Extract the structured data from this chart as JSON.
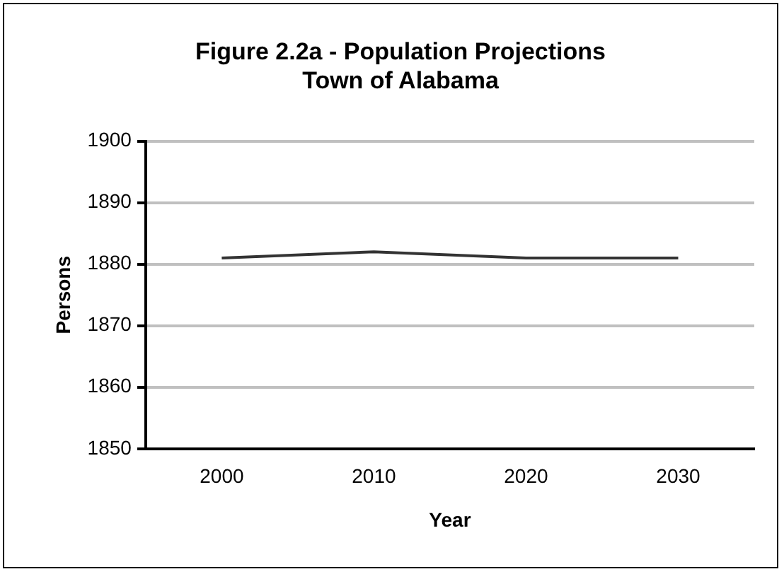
{
  "chart_data": {
    "type": "line",
    "title": [
      "Figure 2.2a - Population Projections",
      "Town of Alabama"
    ],
    "xlabel": "Year",
    "ylabel": "Persons",
    "categories": [
      "2000",
      "2010",
      "2020",
      "2030"
    ],
    "series": [
      {
        "color": "#333333",
        "values": [
          1881,
          1882,
          1881,
          1881
        ]
      }
    ],
    "ylim": [
      1850,
      1900
    ],
    "yticks": [
      1850,
      1860,
      1870,
      1880,
      1890,
      1900
    ],
    "grid": "y",
    "legend": false,
    "marker": "none"
  }
}
